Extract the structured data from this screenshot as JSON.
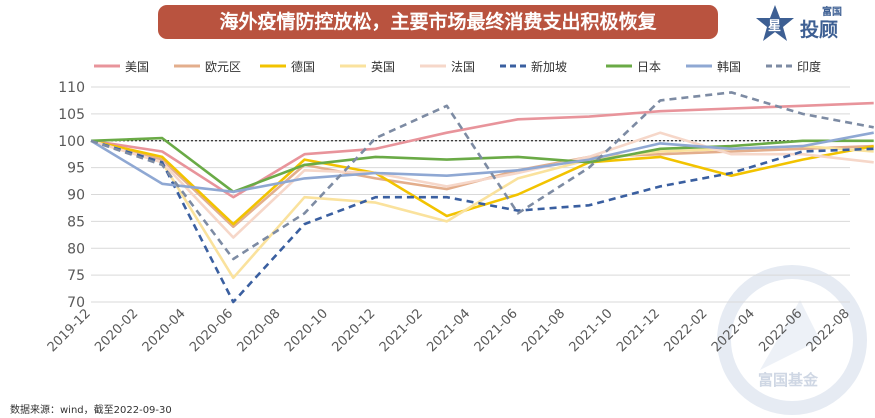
{
  "title": "海外疫情防控放松，主要市场最终消费支出积极恢复",
  "brand": {
    "top": "富国",
    "name": "投顾",
    "star_char": "星",
    "watermark": "富国基金"
  },
  "source": "数据来源：wind，截至2022-09-30",
  "colors": {
    "banner": "#b9533f",
    "brand": "#3d5f93"
  },
  "chart_data": {
    "type": "line",
    "x": [
      "2019-12",
      "2020-02",
      "2020-04",
      "2020-06",
      "2020-08",
      "2020-10",
      "2020-12",
      "2021-02",
      "2021-04",
      "2021-06",
      "2021-08",
      "2021-10",
      "2021-12",
      "2022-02",
      "2022-04",
      "2022-06",
      "2022-08"
    ],
    "xtick_labels": [
      "2019-12",
      "2020-02",
      "2020-04",
      "2020-06",
      "2020-08",
      "2020-10",
      "2020-12",
      "2021-02",
      "2021-04",
      "2021-06",
      "2021-08",
      "2021-10",
      "2021-12",
      "2022-02",
      "2022-04",
      "2022-06",
      "2022-08"
    ],
    "ylim": [
      70,
      110
    ],
    "yticks": [
      70,
      75,
      80,
      85,
      90,
      95,
      100,
      105,
      110
    ],
    "reference_line": 100,
    "legend_position": "top",
    "series": [
      {
        "name": "美国",
        "color": "#e8949b",
        "dash": false,
        "points": [
          [
            0,
            100
          ],
          [
            1.5,
            98
          ],
          [
            3,
            89.5
          ],
          [
            4.5,
            97.5
          ],
          [
            6,
            98.5
          ],
          [
            7.5,
            101.5
          ],
          [
            9,
            104
          ],
          [
            10.5,
            104.5
          ],
          [
            12,
            105.5
          ],
          [
            13.5,
            106
          ],
          [
            15,
            106.5
          ],
          [
            16.5,
            107
          ]
        ]
      },
      {
        "name": "欧元区",
        "color": "#e3ae8c",
        "dash": false,
        "points": [
          [
            0,
            100
          ],
          [
            1.5,
            96.5
          ],
          [
            3,
            84
          ],
          [
            4.5,
            95.5
          ],
          [
            6,
            93
          ],
          [
            7.5,
            91
          ],
          [
            9,
            94.5
          ],
          [
            10.5,
            97
          ],
          [
            12,
            97.5
          ],
          [
            13.5,
            98
          ],
          [
            15,
            98.5
          ],
          [
            16.5,
            99
          ]
        ]
      },
      {
        "name": "德国",
        "color": "#f2c300",
        "dash": false,
        "points": [
          [
            0,
            100
          ],
          [
            1.5,
            97
          ],
          [
            3,
            84.5
          ],
          [
            4.5,
            96.5
          ],
          [
            6,
            94
          ],
          [
            7.5,
            86
          ],
          [
            9,
            90
          ],
          [
            10.5,
            96
          ],
          [
            12,
            97
          ],
          [
            13.5,
            93.5
          ],
          [
            15,
            96.5
          ],
          [
            16.5,
            99
          ]
        ]
      },
      {
        "name": "英国",
        "color": "#fae29d",
        "dash": false,
        "points": [
          [
            0,
            100
          ],
          [
            1.5,
            96
          ],
          [
            3,
            74.5
          ],
          [
            4.5,
            89.5
          ],
          [
            6,
            88.5
          ],
          [
            7.5,
            85
          ],
          [
            9,
            93
          ],
          [
            10.5,
            96.5
          ],
          [
            12,
            98
          ],
          [
            13.5,
            98.5
          ],
          [
            15,
            99
          ],
          [
            16.5,
            98
          ]
        ]
      },
      {
        "name": "法国",
        "color": "#f6d7c9",
        "dash": false,
        "points": [
          [
            0,
            100
          ],
          [
            1.5,
            96
          ],
          [
            3,
            82
          ],
          [
            4.5,
            94.5
          ],
          [
            6,
            94
          ],
          [
            7.5,
            91.5
          ],
          [
            9,
            94
          ],
          [
            10.5,
            97
          ],
          [
            12,
            101.5
          ],
          [
            13.5,
            97.5
          ],
          [
            15,
            97.5
          ],
          [
            16.5,
            96
          ]
        ]
      },
      {
        "name": "新加坡",
        "color": "#3a5fa0",
        "dash": true,
        "points": [
          [
            0,
            100
          ],
          [
            1.5,
            96
          ],
          [
            3,
            70
          ],
          [
            4.5,
            84.5
          ],
          [
            6,
            89.5
          ],
          [
            7.5,
            89.5
          ],
          [
            9,
            87
          ],
          [
            10.5,
            88
          ],
          [
            12,
            91.5
          ],
          [
            13.5,
            94
          ],
          [
            15,
            98
          ],
          [
            16.5,
            98.5
          ]
        ]
      },
      {
        "name": "日本",
        "color": "#6aaa46",
        "dash": false,
        "points": [
          [
            0,
            100
          ],
          [
            1.5,
            100.5
          ],
          [
            3,
            90.5
          ],
          [
            4.5,
            95.5
          ],
          [
            6,
            97
          ],
          [
            7.5,
            96.5
          ],
          [
            9,
            97
          ],
          [
            10.5,
            96
          ],
          [
            12,
            98.5
          ],
          [
            13.5,
            99
          ],
          [
            15,
            100
          ],
          [
            16.5,
            100
          ]
        ]
      },
      {
        "name": "韩国",
        "color": "#8fa8d3",
        "dash": false,
        "points": [
          [
            0,
            100
          ],
          [
            1.5,
            92
          ],
          [
            3,
            90.5
          ],
          [
            4.5,
            93
          ],
          [
            6,
            94
          ],
          [
            7.5,
            93.5
          ],
          [
            9,
            94.5
          ],
          [
            10.5,
            96.5
          ],
          [
            12,
            99.5
          ],
          [
            13.5,
            98.5
          ],
          [
            15,
            99
          ],
          [
            16.5,
            101.5
          ]
        ]
      },
      {
        "name": "印度",
        "color": "#7d8ba3",
        "dash": true,
        "points": [
          [
            0,
            100
          ],
          [
            1.5,
            95.5
          ],
          [
            3,
            78
          ],
          [
            4.5,
            86.5
          ],
          [
            6,
            100.5
          ],
          [
            7.5,
            106.5
          ],
          [
            9,
            86.5
          ],
          [
            10.5,
            95
          ],
          [
            12,
            107.5
          ],
          [
            13.5,
            109
          ],
          [
            15,
            105
          ],
          [
            16.5,
            102.5
          ]
        ]
      }
    ]
  }
}
